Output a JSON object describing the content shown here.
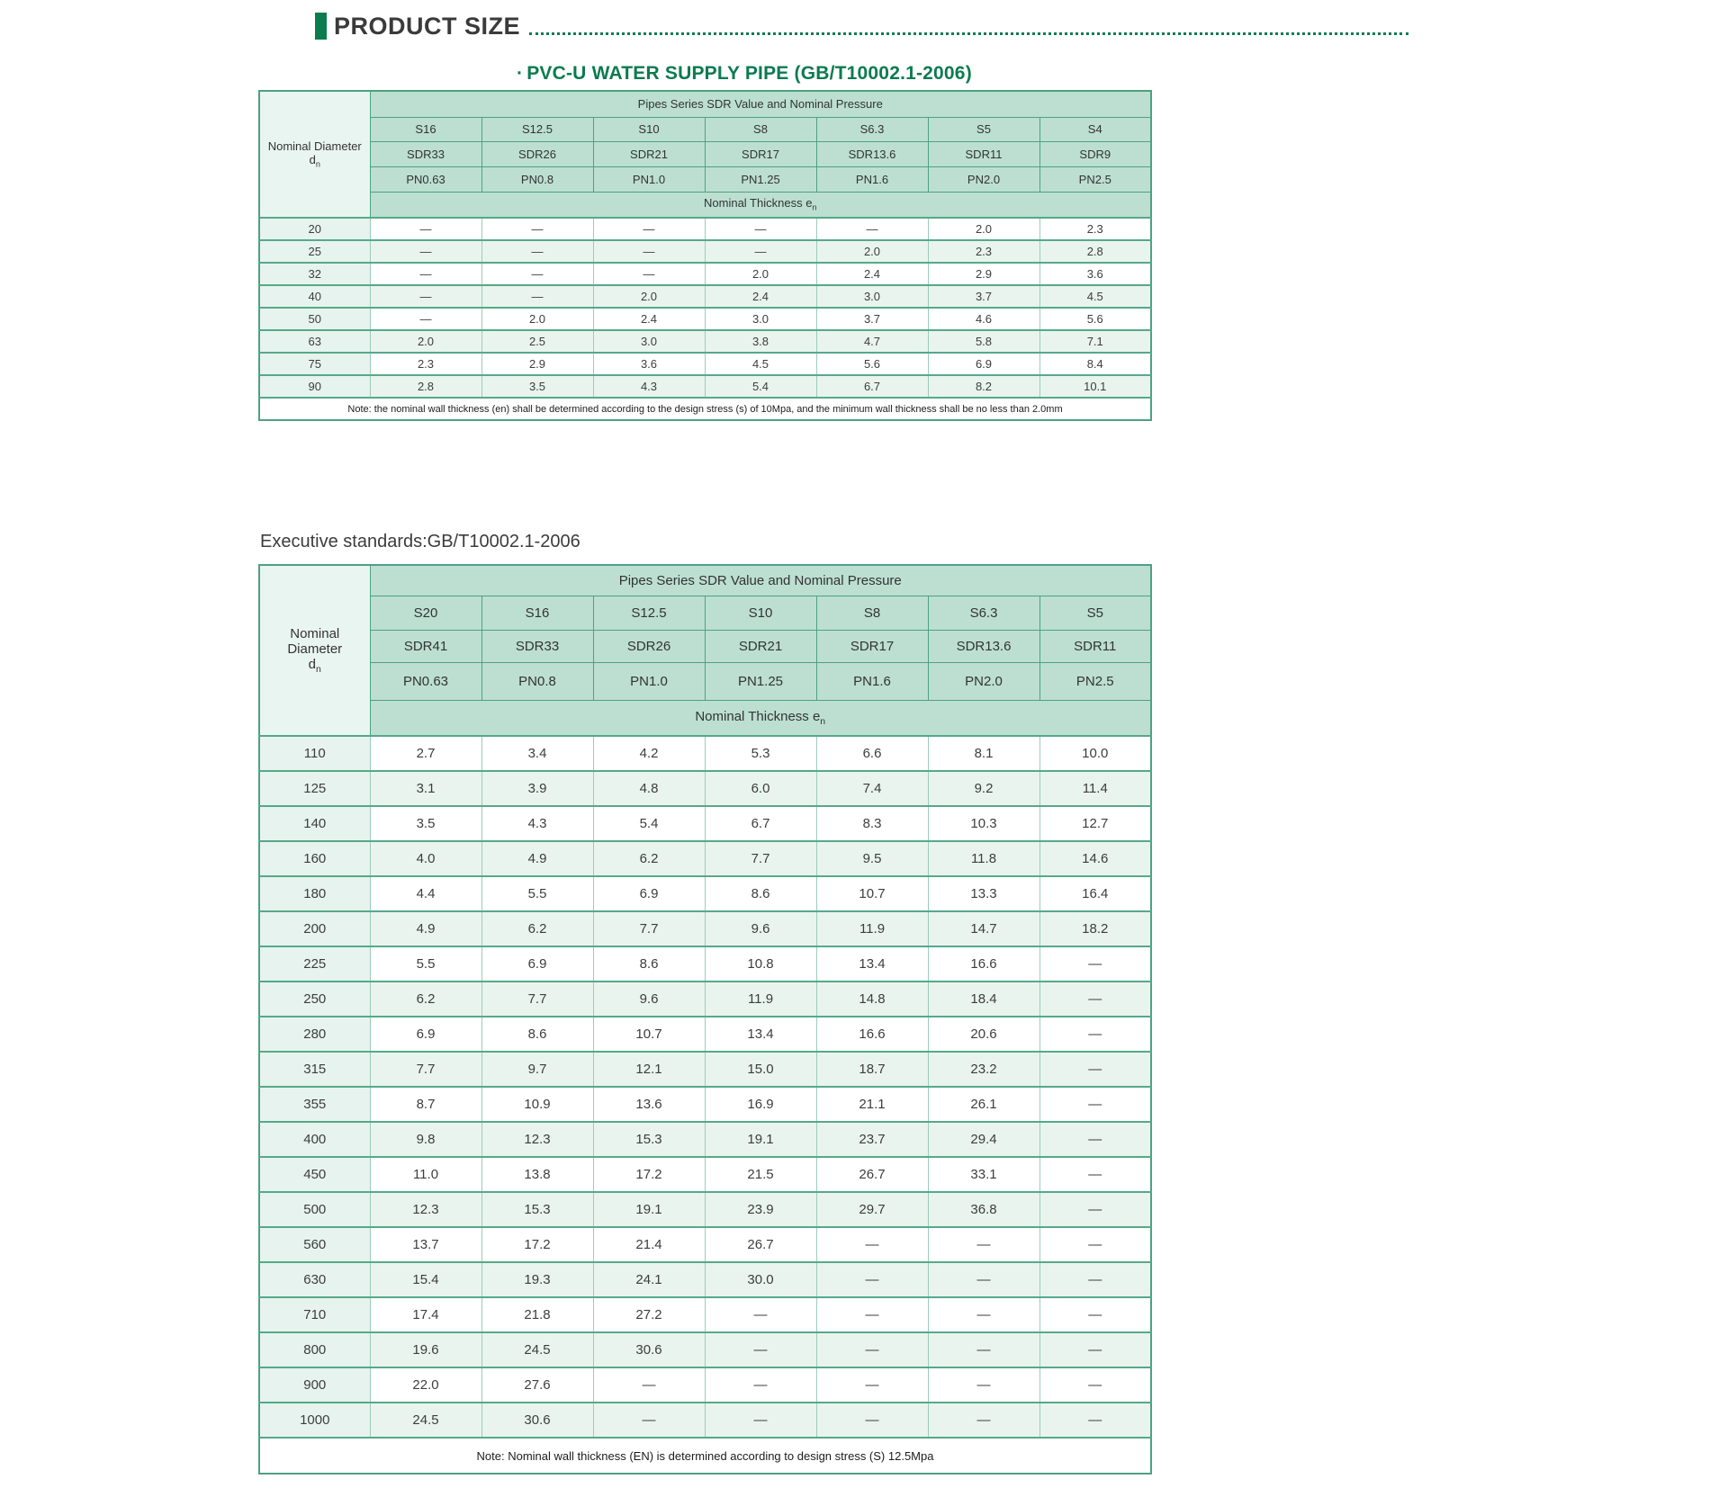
{
  "page": {
    "title": "PRODUCT SIZE",
    "subtitle_bullet": "·",
    "subtitle": "PVC-U WATER SUPPLY PIPE (GB/T10002.1-2006)",
    "executive_standards": "Executive standards:GB/T10002.1-2006"
  },
  "colors": {
    "accent_green": "#0a7c4e",
    "subtitle_green": "#0c7b50",
    "table_header_bg": "#bcdfd2",
    "row_tint_bg": "#e9f4ef",
    "left_column_bg": "#e7f3ee",
    "table_border": "#4da185",
    "title_text": "#3a3a3a"
  },
  "table1": {
    "header_title": "Pipes Series SDR Value and Nominal Pressure",
    "diameter_label": "Nominal Diameter",
    "diameter_symbol": "d",
    "diameter_subscript": "n",
    "thickness_label": "Nominal Thickness e",
    "thickness_subscript": "n",
    "s_values": [
      "S16",
      "S12.5",
      "S10",
      "S8",
      "S6.3",
      "S5",
      "S4"
    ],
    "sdr_values": [
      "SDR33",
      "SDR26",
      "SDR21",
      "SDR17",
      "SDR13.6",
      "SDR11",
      "SDR9"
    ],
    "pn_values": [
      "PN0.63",
      "PN0.8",
      "PN1.0",
      "PN1.25",
      "PN1.6",
      "PN2.0",
      "PN2.5"
    ],
    "rows": [
      {
        "d": "20",
        "values": [
          "—",
          "—",
          "—",
          "—",
          "—",
          "2.0",
          "2.3"
        ]
      },
      {
        "d": "25",
        "values": [
          "—",
          "—",
          "—",
          "—",
          "2.0",
          "2.3",
          "2.8"
        ]
      },
      {
        "d": "32",
        "values": [
          "—",
          "—",
          "—",
          "2.0",
          "2.4",
          "2.9",
          "3.6"
        ]
      },
      {
        "d": "40",
        "values": [
          "—",
          "—",
          "2.0",
          "2.4",
          "3.0",
          "3.7",
          "4.5"
        ]
      },
      {
        "d": "50",
        "values": [
          "—",
          "2.0",
          "2.4",
          "3.0",
          "3.7",
          "4.6",
          "5.6"
        ]
      },
      {
        "d": "63",
        "values": [
          "2.0",
          "2.5",
          "3.0",
          "3.8",
          "4.7",
          "5.8",
          "7.1"
        ]
      },
      {
        "d": "75",
        "values": [
          "2.3",
          "2.9",
          "3.6",
          "4.5",
          "5.6",
          "6.9",
          "8.4"
        ]
      },
      {
        "d": "90",
        "values": [
          "2.8",
          "3.5",
          "4.3",
          "5.4",
          "6.7",
          "8.2",
          "10.1"
        ]
      }
    ],
    "note": "Note: the nominal wall thickness (en) shall be determined according to the design stress (s) of 10Mpa, and the minimum wall thickness shall be no less than 2.0mm"
  },
  "table2": {
    "header_title": "Pipes Series SDR Value and Nominal Pressure",
    "diameter_label": "Nominal Diameter",
    "diameter_symbol": "d",
    "diameter_subscript": "n",
    "thickness_label": "Nominal Thickness e",
    "thickness_subscript": "n",
    "s_values": [
      "S20",
      "S16",
      "S12.5",
      "S10",
      "S8",
      "S6.3",
      "S5"
    ],
    "sdr_values": [
      "SDR41",
      "SDR33",
      "SDR26",
      "SDR21",
      "SDR17",
      "SDR13.6",
      "SDR11"
    ],
    "pn_values": [
      "PN0.63",
      "PN0.8",
      "PN1.0",
      "PN1.25",
      "PN1.6",
      "PN2.0",
      "PN2.5"
    ],
    "rows": [
      {
        "d": "110",
        "values": [
          "2.7",
          "3.4",
          "4.2",
          "5.3",
          "6.6",
          "8.1",
          "10.0"
        ]
      },
      {
        "d": "125",
        "values": [
          "3.1",
          "3.9",
          "4.8",
          "6.0",
          "7.4",
          "9.2",
          "11.4"
        ]
      },
      {
        "d": "140",
        "values": [
          "3.5",
          "4.3",
          "5.4",
          "6.7",
          "8.3",
          "10.3",
          "12.7"
        ]
      },
      {
        "d": "160",
        "values": [
          "4.0",
          "4.9",
          "6.2",
          "7.7",
          "9.5",
          "11.8",
          "14.6"
        ]
      },
      {
        "d": "180",
        "values": [
          "4.4",
          "5.5",
          "6.9",
          "8.6",
          "10.7",
          "13.3",
          "16.4"
        ]
      },
      {
        "d": "200",
        "values": [
          "4.9",
          "6.2",
          "7.7",
          "9.6",
          "11.9",
          "14.7",
          "18.2"
        ]
      },
      {
        "d": "225",
        "values": [
          "5.5",
          "6.9",
          "8.6",
          "10.8",
          "13.4",
          "16.6",
          "—"
        ]
      },
      {
        "d": "250",
        "values": [
          "6.2",
          "7.7",
          "9.6",
          "11.9",
          "14.8",
          "18.4",
          "—"
        ]
      },
      {
        "d": "280",
        "values": [
          "6.9",
          "8.6",
          "10.7",
          "13.4",
          "16.6",
          "20.6",
          "—"
        ]
      },
      {
        "d": "315",
        "values": [
          "7.7",
          "9.7",
          "12.1",
          "15.0",
          "18.7",
          "23.2",
          "—"
        ]
      },
      {
        "d": "355",
        "values": [
          "8.7",
          "10.9",
          "13.6",
          "16.9",
          "21.1",
          "26.1",
          "—"
        ]
      },
      {
        "d": "400",
        "values": [
          "9.8",
          "12.3",
          "15.3",
          "19.1",
          "23.7",
          "29.4",
          "—"
        ]
      },
      {
        "d": "450",
        "values": [
          "11.0",
          "13.8",
          "17.2",
          "21.5",
          "26.7",
          "33.1",
          "—"
        ]
      },
      {
        "d": "500",
        "values": [
          "12.3",
          "15.3",
          "19.1",
          "23.9",
          "29.7",
          "36.8",
          "—"
        ]
      },
      {
        "d": "560",
        "values": [
          "13.7",
          "17.2",
          "21.4",
          "26.7",
          "—",
          "—",
          "—"
        ]
      },
      {
        "d": "630",
        "values": [
          "15.4",
          "19.3",
          "24.1",
          "30.0",
          "—",
          "—",
          "—"
        ]
      },
      {
        "d": "710",
        "values": [
          "17.4",
          "21.8",
          "27.2",
          "—",
          "—",
          "—",
          "—"
        ]
      },
      {
        "d": "800",
        "values": [
          "19.6",
          "24.5",
          "30.6",
          "—",
          "—",
          "—",
          "—"
        ]
      },
      {
        "d": "900",
        "values": [
          "22.0",
          "27.6",
          "—",
          "—",
          "—",
          "—",
          "—"
        ]
      },
      {
        "d": "1000",
        "values": [
          "24.5",
          "30.6",
          "—",
          "—",
          "—",
          "—",
          "—"
        ]
      }
    ],
    "note": "Note: Nominal wall thickness (EN) is determined according to design stress (S) 12.5Mpa"
  }
}
